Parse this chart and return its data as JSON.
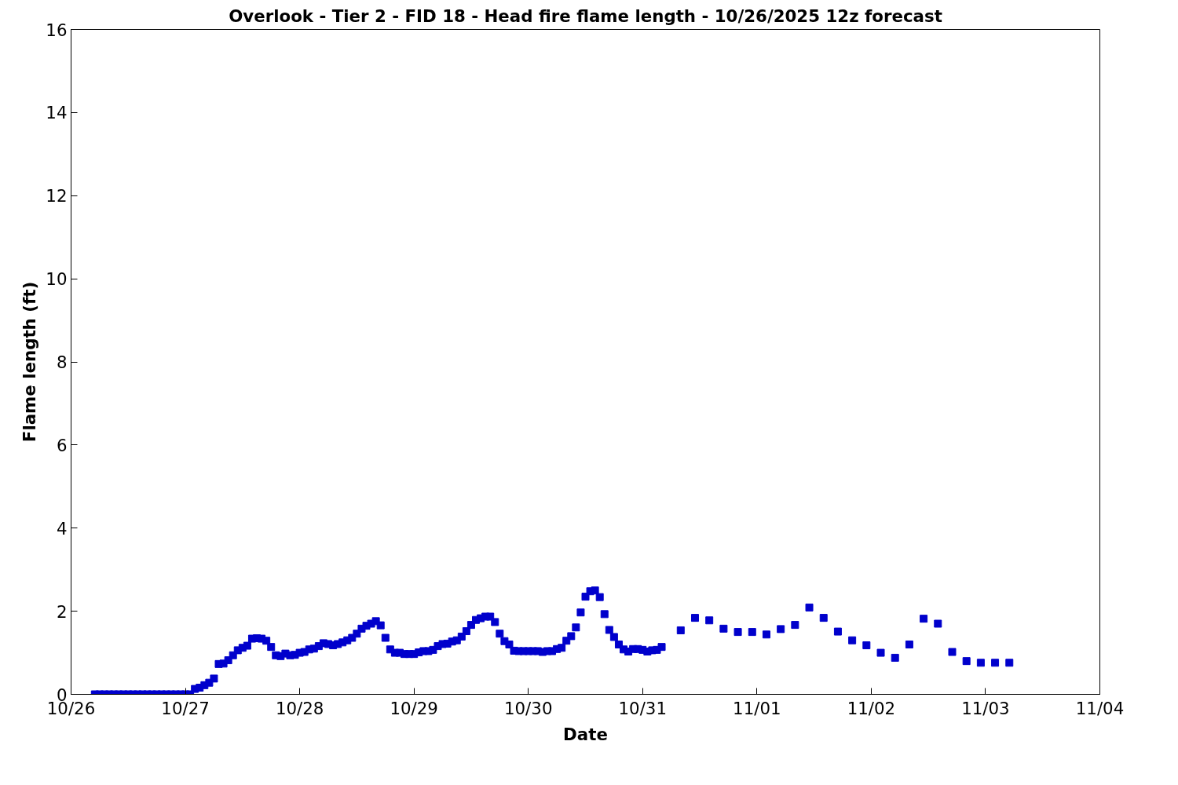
{
  "chart_data": {
    "type": "scatter",
    "title": "Overlook - Tier 2 - FID 18 - Head fire flame length - 10/26/2025 12z forecast",
    "xlabel": "Date",
    "ylabel": "Flame length (ft)",
    "marker": "square",
    "grid": false,
    "xlim": [
      "2025-10-26",
      "2025-11-04"
    ],
    "xticks": [
      {
        "value": "2025-10-26",
        "label": "10/26"
      },
      {
        "value": "2025-10-27",
        "label": "10/27"
      },
      {
        "value": "2025-10-28",
        "label": "10/28"
      },
      {
        "value": "2025-10-29",
        "label": "10/29"
      },
      {
        "value": "2025-10-30",
        "label": "10/30"
      },
      {
        "value": "2025-10-31",
        "label": "10/31"
      },
      {
        "value": "2025-11-01",
        "label": "11/01"
      },
      {
        "value": "2025-11-02",
        "label": "11/02"
      },
      {
        "value": "2025-11-03",
        "label": "11/03"
      },
      {
        "value": "2025-11-04",
        "label": "11/04"
      }
    ],
    "ylim": [
      0,
      16
    ],
    "yticks": [
      0,
      2,
      4,
      6,
      8,
      10,
      12,
      14,
      16
    ],
    "series": [
      {
        "color": "#0000cc",
        "x": [
          "2025-10-26T05:00",
          "2025-10-26T06:00",
          "2025-10-26T07:00",
          "2025-10-26T08:00",
          "2025-10-26T09:00",
          "2025-10-26T10:00",
          "2025-10-26T11:00",
          "2025-10-26T12:00",
          "2025-10-26T13:00",
          "2025-10-26T14:00",
          "2025-10-26T15:00",
          "2025-10-26T16:00",
          "2025-10-26T17:00",
          "2025-10-26T18:00",
          "2025-10-26T19:00",
          "2025-10-26T20:00",
          "2025-10-26T21:00",
          "2025-10-26T22:00",
          "2025-10-26T23:00",
          "2025-10-27T00:00",
          "2025-10-27T01:00",
          "2025-10-27T02:00",
          "2025-10-27T03:00",
          "2025-10-27T04:00",
          "2025-10-27T05:00",
          "2025-10-27T06:00",
          "2025-10-27T07:00",
          "2025-10-27T08:00",
          "2025-10-27T09:00",
          "2025-10-27T10:00",
          "2025-10-27T11:00",
          "2025-10-27T12:00",
          "2025-10-27T13:00",
          "2025-10-27T14:00",
          "2025-10-27T15:00",
          "2025-10-27T16:00",
          "2025-10-27T17:00",
          "2025-10-27T18:00",
          "2025-10-27T19:00",
          "2025-10-27T20:00",
          "2025-10-27T21:00",
          "2025-10-27T22:00",
          "2025-10-27T23:00",
          "2025-10-28T00:00",
          "2025-10-28T01:00",
          "2025-10-28T02:00",
          "2025-10-28T03:00",
          "2025-10-28T04:00",
          "2025-10-28T05:00",
          "2025-10-28T06:00",
          "2025-10-28T07:00",
          "2025-10-28T08:00",
          "2025-10-28T09:00",
          "2025-10-28T10:00",
          "2025-10-28T11:00",
          "2025-10-28T12:00",
          "2025-10-28T13:00",
          "2025-10-28T14:00",
          "2025-10-28T15:00",
          "2025-10-28T16:00",
          "2025-10-28T17:00",
          "2025-10-28T18:00",
          "2025-10-28T19:00",
          "2025-10-28T20:00",
          "2025-10-28T21:00",
          "2025-10-28T22:00",
          "2025-10-28T23:00",
          "2025-10-29T00:00",
          "2025-10-29T01:00",
          "2025-10-29T02:00",
          "2025-10-29T03:00",
          "2025-10-29T04:00",
          "2025-10-29T05:00",
          "2025-10-29T06:00",
          "2025-10-29T07:00",
          "2025-10-29T08:00",
          "2025-10-29T09:00",
          "2025-10-29T10:00",
          "2025-10-29T11:00",
          "2025-10-29T12:00",
          "2025-10-29T13:00",
          "2025-10-29T14:00",
          "2025-10-29T15:00",
          "2025-10-29T16:00",
          "2025-10-29T17:00",
          "2025-10-29T18:00",
          "2025-10-29T19:00",
          "2025-10-29T20:00",
          "2025-10-29T21:00",
          "2025-10-29T22:00",
          "2025-10-29T23:00",
          "2025-10-30T00:00",
          "2025-10-30T01:00",
          "2025-10-30T02:00",
          "2025-10-30T03:00",
          "2025-10-30T04:00",
          "2025-10-30T05:00",
          "2025-10-30T06:00",
          "2025-10-30T07:00",
          "2025-10-30T08:00",
          "2025-10-30T09:00",
          "2025-10-30T10:00",
          "2025-10-30T11:00",
          "2025-10-30T12:00",
          "2025-10-30T13:00",
          "2025-10-30T14:00",
          "2025-10-30T15:00",
          "2025-10-30T16:00",
          "2025-10-30T17:00",
          "2025-10-30T18:00",
          "2025-10-30T19:00",
          "2025-10-30T20:00",
          "2025-10-30T21:00",
          "2025-10-30T22:00",
          "2025-10-30T23:00",
          "2025-10-31T00:00",
          "2025-10-31T01:00",
          "2025-10-31T02:00",
          "2025-10-31T03:00",
          "2025-10-31T04:00",
          "2025-10-31T08:00",
          "2025-10-31T11:00",
          "2025-10-31T14:00",
          "2025-10-31T17:00",
          "2025-10-31T20:00",
          "2025-10-31T23:00",
          "2025-11-01T02:00",
          "2025-11-01T05:00",
          "2025-11-01T08:00",
          "2025-11-01T11:00",
          "2025-11-01T14:00",
          "2025-11-01T17:00",
          "2025-11-01T20:00",
          "2025-11-01T23:00",
          "2025-11-02T02:00",
          "2025-11-02T05:00",
          "2025-11-02T08:00",
          "2025-11-02T11:00",
          "2025-11-02T14:00",
          "2025-11-02T17:00",
          "2025-11-02T20:00",
          "2025-11-02T23:00",
          "2025-11-03T02:00",
          "2025-11-03T05:00"
        ],
        "values": [
          0,
          0,
          0,
          0,
          0,
          0,
          0,
          0,
          0,
          0,
          0,
          0,
          0,
          0,
          0,
          0,
          0,
          0,
          0,
          0,
          0,
          0.13,
          0.16,
          0.22,
          0.28,
          0.38,
          0.73,
          0.74,
          0.82,
          0.94,
          1.06,
          1.12,
          1.17,
          1.34,
          1.35,
          1.34,
          1.29,
          1.14,
          0.94,
          0.92,
          0.98,
          0.94,
          0.95,
          1.0,
          1.02,
          1.08,
          1.1,
          1.16,
          1.23,
          1.21,
          1.18,
          1.21,
          1.25,
          1.3,
          1.36,
          1.46,
          1.58,
          1.65,
          1.7,
          1.76,
          1.66,
          1.36,
          1.08,
          1.0,
          1.0,
          0.97,
          0.97,
          0.97,
          1.01,
          1.04,
          1.04,
          1.07,
          1.16,
          1.21,
          1.22,
          1.27,
          1.3,
          1.39,
          1.52,
          1.67,
          1.79,
          1.83,
          1.87,
          1.87,
          1.74,
          1.46,
          1.28,
          1.2,
          1.05,
          1.04,
          1.04,
          1.04,
          1.04,
          1.04,
          1.02,
          1.04,
          1.04,
          1.09,
          1.12,
          1.29,
          1.4,
          1.61,
          1.97,
          2.35,
          2.48,
          2.5,
          2.34,
          1.93,
          1.55,
          1.38,
          1.2,
          1.08,
          1.03,
          1.09,
          1.09,
          1.07,
          1.03,
          1.06,
          1.07,
          1.14,
          1.54,
          1.84,
          1.78,
          1.58,
          1.5,
          1.5,
          1.44,
          1.57,
          1.67,
          2.09,
          1.84,
          1.51,
          1.3,
          1.18,
          1.0,
          0.88,
          1.2,
          1.82,
          1.7,
          1.02,
          0.8,
          0.76,
          0.76,
          0.76
        ]
      }
    ]
  }
}
